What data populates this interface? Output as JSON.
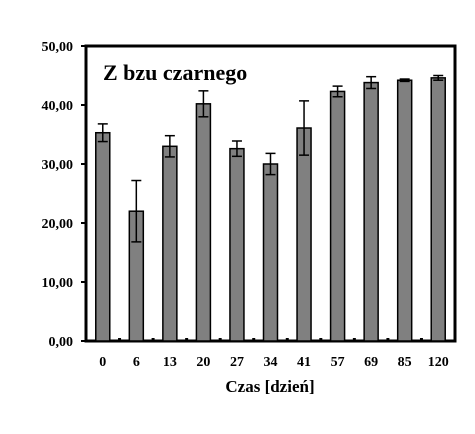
{
  "chart_data": {
    "type": "bar",
    "title": "Z bzu czarnego",
    "xlabel": "Czas [dzień]",
    "ylabel": "",
    "ylim": [
      0,
      50
    ],
    "yticks": [
      "0,00",
      "10,00",
      "20,00",
      "30,00",
      "40,00",
      "50,00"
    ],
    "categories": [
      "0",
      "6",
      "13",
      "20",
      "27",
      "34",
      "41",
      "57",
      "69",
      "85",
      "120"
    ],
    "values": [
      35.3,
      22.0,
      33.0,
      40.2,
      32.6,
      30.0,
      36.1,
      42.3,
      43.8,
      44.2,
      44.6
    ],
    "errors": [
      1.5,
      5.2,
      1.8,
      2.2,
      1.3,
      1.8,
      4.6,
      0.9,
      1.0,
      0.2,
      0.4
    ],
    "bar_color": "#808080",
    "grid": false,
    "legend": "none"
  }
}
